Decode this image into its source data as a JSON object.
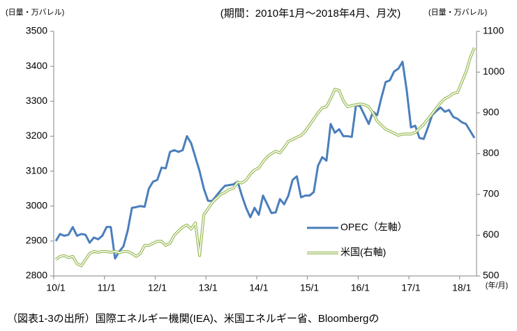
{
  "chart_data": {
    "type": "line",
    "title": "(期間：2010年1月～2018年4月、月次)",
    "ylabel": "(日量・万バレル)",
    "y2label": "(日量・万バレル)",
    "xlabel": "(年/月)",
    "source": "（図表1-3の出所）国際エネルギー機関(IEA)、米国エネルギー省、Bloombergの",
    "categories": [
      "10/1",
      null,
      null,
      null,
      null,
      null,
      null,
      null,
      null,
      null,
      null,
      null,
      "11/1",
      null,
      null,
      null,
      null,
      null,
      null,
      null,
      null,
      null,
      null,
      null,
      "12/1",
      null,
      null,
      null,
      null,
      null,
      null,
      null,
      null,
      null,
      null,
      null,
      "13/1",
      null,
      null,
      null,
      null,
      null,
      null,
      null,
      null,
      null,
      null,
      null,
      "14/1",
      null,
      null,
      null,
      null,
      null,
      null,
      null,
      null,
      null,
      null,
      null,
      "15/1",
      null,
      null,
      null,
      null,
      null,
      null,
      null,
      null,
      null,
      null,
      null,
      "16/1",
      null,
      null,
      null,
      null,
      null,
      null,
      null,
      null,
      null,
      null,
      null,
      "17/1",
      null,
      null,
      null,
      null,
      null,
      null,
      null,
      null,
      null,
      null,
      null,
      "18/1",
      null,
      null,
      null
    ],
    "series": [
      {
        "name": "OPEC（左軸）",
        "color": "#4a7ebb",
        "axis": "y",
        "values": [
          2900,
          2920,
          2915,
          2918,
          2940,
          2915,
          2920,
          2918,
          2895,
          2910,
          2905,
          2915,
          2940,
          2940,
          2850,
          2870,
          2885,
          2930,
          2995,
          2997,
          3000,
          2998,
          3050,
          3070,
          3075,
          3110,
          3108,
          3155,
          3160,
          3155,
          3160,
          3200,
          3180,
          3140,
          3100,
          3050,
          3015,
          3015,
          3030,
          3045,
          3058,
          3060,
          3062,
          3070,
          3030,
          2995,
          2968,
          2995,
          2975,
          3030,
          3005,
          2980,
          2982,
          3020,
          3005,
          3030,
          3075,
          3085,
          3025,
          3030,
          3030,
          3040,
          3115,
          3140,
          3130,
          3235,
          3210,
          3220,
          3200,
          3200,
          3198,
          3290,
          3285,
          3260,
          3235,
          3270,
          3260,
          3310,
          3355,
          3360,
          3385,
          3393,
          3413,
          3330,
          3225,
          3230,
          3195,
          3192,
          3225,
          3260,
          3272,
          3282,
          3270,
          3275,
          3255,
          3250,
          3240,
          3235,
          3215,
          3195
        ]
      },
      {
        "name": "米国(右軸)",
        "color": "#9bbb59",
        "axis": "y2",
        "values": [
          540,
          548,
          550,
          545,
          548,
          530,
          525,
          540,
          555,
          560,
          558,
          560,
          560,
          558,
          560,
          557,
          560,
          560,
          555,
          548,
          555,
          575,
          575,
          580,
          585,
          585,
          575,
          580,
          600,
          610,
          620,
          625,
          615,
          630,
          550,
          650,
          665,
          680,
          690,
          700,
          705,
          712,
          715,
          730,
          728,
          735,
          750,
          760,
          765,
          780,
          792,
          800,
          806,
          802,
          815,
          830,
          835,
          840,
          845,
          855,
          870,
          885,
          900,
          912,
          915,
          935,
          958,
          955,
          930,
          915,
          918,
          920,
          922,
          920,
          915,
          900,
          880,
          870,
          860,
          855,
          850,
          845,
          848,
          848,
          848,
          852,
          862,
          872,
          885,
          898,
          912,
          925,
          935,
          940,
          948,
          950,
          975,
          1000,
          1035,
          1060
        ]
      }
    ],
    "ylim": [
      2800,
      3500
    ],
    "yticks": [
      2800,
      2900,
      3000,
      3100,
      3200,
      3300,
      3400,
      3500
    ],
    "y2lim": [
      500,
      1100
    ],
    "y2ticks": [
      500,
      600,
      700,
      800,
      900,
      1000,
      1100
    ],
    "grid": false
  }
}
